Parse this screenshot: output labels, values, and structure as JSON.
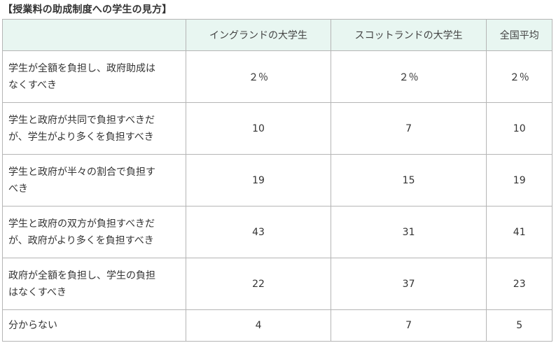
{
  "caption": "【授業料の助成制度への学生の見方】",
  "table": {
    "headers": [
      "",
      "イングランドの大学生",
      "スコットランドの大学生",
      "全国平均"
    ],
    "rows": [
      {
        "label": [
          "学生が全額を負担し、政府助成は",
          "なくすべき"
        ],
        "values": [
          "２％",
          "２％",
          "２％"
        ]
      },
      {
        "label": [
          "学生と政府が共同で負担すべきだ",
          "が、学生がより多くを負担すべき"
        ],
        "values": [
          "10",
          "7",
          "10"
        ]
      },
      {
        "label": [
          "学生と政府が半々の割合で負担す",
          "べき"
        ],
        "values": [
          "19",
          "15",
          "19"
        ]
      },
      {
        "label": [
          "学生と政府の双方が負担すべきだ",
          "が、政府がより多くを負担すべき"
        ],
        "values": [
          "43",
          "31",
          "41"
        ]
      },
      {
        "label": [
          "政府が全額を負担し、学生の負担",
          "はなくすべき"
        ],
        "values": [
          "22",
          "37",
          "23"
        ]
      },
      {
        "label": [
          "分からない"
        ],
        "values": [
          "4",
          "7",
          "5"
        ]
      }
    ]
  }
}
